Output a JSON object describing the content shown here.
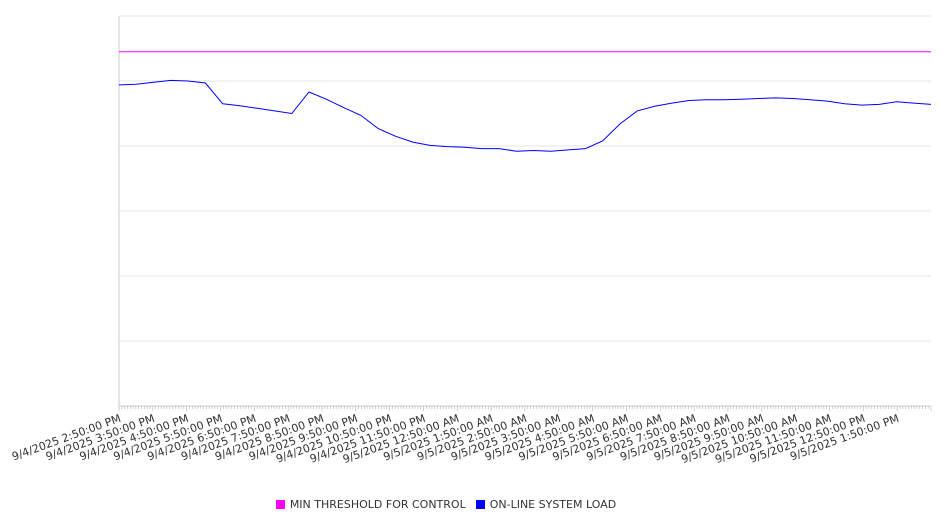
{
  "chart_data": {
    "type": "line",
    "title": "",
    "xlabel": "",
    "ylabel": "",
    "grid": true,
    "legend_position": "bottom-center",
    "x_tick_labels": [
      "9/4/2025 2:50:00 PM",
      "9/4/2025 3:50:00 PM",
      "9/4/2025 4:50:00 PM",
      "9/4/2025 5:50:00 PM",
      "9/4/2025 6:50:00 PM",
      "9/4/2025 7:50:00 PM",
      "9/4/2025 8:50:00 PM",
      "9/4/2025 9:50:00 PM",
      "9/4/2025 10:50:00 PM",
      "9/4/2025 11:50:00 PM",
      "9/5/2025 12:50:00 AM",
      "9/5/2025 1:50:00 AM",
      "9/5/2025 2:50:00 AM",
      "9/5/2025 3:50:00 AM",
      "9/5/2025 4:50:00 AM",
      "9/5/2025 5:50:00 AM",
      "9/5/2025 6:50:00 AM",
      "9/5/2025 7:50:00 AM",
      "9/5/2025 8:50:00 AM",
      "9/5/2025 9:50:00 AM",
      "9/5/2025 10:50:00 AM",
      "9/5/2025 11:50:00 AM",
      "9/5/2025 12:50:00 PM",
      "9/5/2025 1:50:00 PM"
    ],
    "ylim": [
      0,
      6
    ],
    "gridline_count": 6,
    "series": [
      {
        "name": "MIN THRESHOLD FOR CONTROL",
        "color": "#ff00ff",
        "values": [
          5.45,
          5.45,
          5.45,
          5.45,
          5.45,
          5.45,
          5.45,
          5.45,
          5.45,
          5.45,
          5.45,
          5.45,
          5.45,
          5.45,
          5.45,
          5.45,
          5.45,
          5.45,
          5.45,
          5.45,
          5.45,
          5.45,
          5.45,
          5.45,
          5.45,
          5.45,
          5.45,
          5.45,
          5.45,
          5.45,
          5.45,
          5.45,
          5.45,
          5.45,
          5.45,
          5.45,
          5.45,
          5.45,
          5.45,
          5.45,
          5.45,
          5.45,
          5.45,
          5.45,
          5.45,
          5.45,
          5.45,
          5.45
        ]
      },
      {
        "name": "ON-LINE SYSTEM LOAD",
        "color": "#0000ff",
        "values": [
          4.94,
          4.95,
          4.98,
          5.01,
          5.0,
          4.97,
          4.65,
          4.62,
          4.58,
          4.54,
          4.5,
          4.83,
          4.72,
          4.59,
          4.47,
          4.27,
          4.15,
          4.06,
          4.01,
          3.99,
          3.98,
          3.96,
          3.96,
          3.92,
          3.93,
          3.92,
          3.94,
          3.96,
          4.08,
          4.34,
          4.54,
          4.61,
          4.66,
          4.7,
          4.71,
          4.71,
          4.72,
          4.73,
          4.74,
          4.73,
          4.71,
          4.69,
          4.65,
          4.63,
          4.64,
          4.68,
          4.66,
          4.64
        ]
      }
    ]
  }
}
